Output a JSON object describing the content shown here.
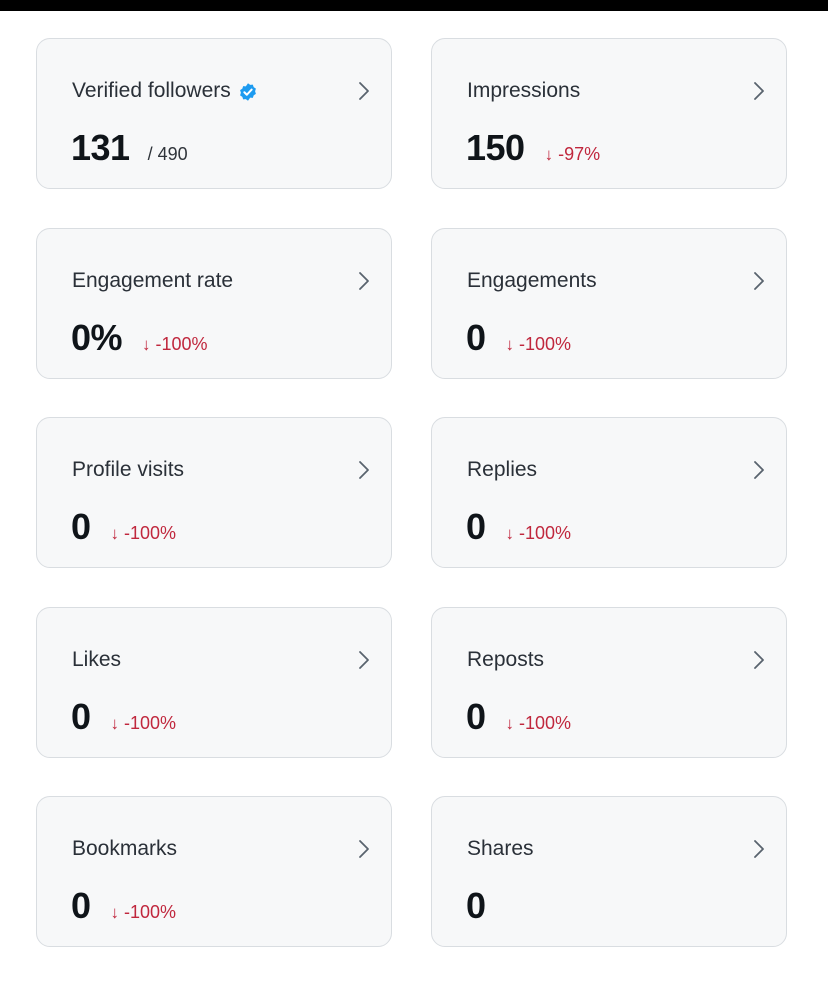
{
  "colors": {
    "card_background": "#f7f8f9",
    "card_border": "#d9dde1",
    "negative_delta": "#c0273d",
    "verified_badge": "#1d9bf0"
  },
  "icons": {
    "verified": "verified-badge-icon",
    "chevron": "chevron-right-icon",
    "down_arrow": "down-arrow-icon"
  },
  "cards": [
    {
      "title": "Verified followers",
      "value": "131",
      "sub": "/ 490"
    },
    {
      "title": "Impressions",
      "value": "150",
      "delta": "-97%",
      "arrow": "↓"
    },
    {
      "title": "Engagement rate",
      "value": "0%",
      "delta": "-100%",
      "arrow": "↓"
    },
    {
      "title": "Engagements",
      "value": "0",
      "delta": "-100%",
      "arrow": "↓"
    },
    {
      "title": "Profile visits",
      "value": "0",
      "delta": "-100%",
      "arrow": "↓"
    },
    {
      "title": "Replies",
      "value": "0",
      "delta": "-100%",
      "arrow": "↓"
    },
    {
      "title": "Likes",
      "value": "0",
      "delta": "-100%",
      "arrow": "↓"
    },
    {
      "title": "Reposts",
      "value": "0",
      "delta": "-100%",
      "arrow": "↓"
    },
    {
      "title": "Bookmarks",
      "value": "0",
      "delta": "-100%",
      "arrow": "↓"
    },
    {
      "title": "Shares",
      "value": "0"
    }
  ]
}
